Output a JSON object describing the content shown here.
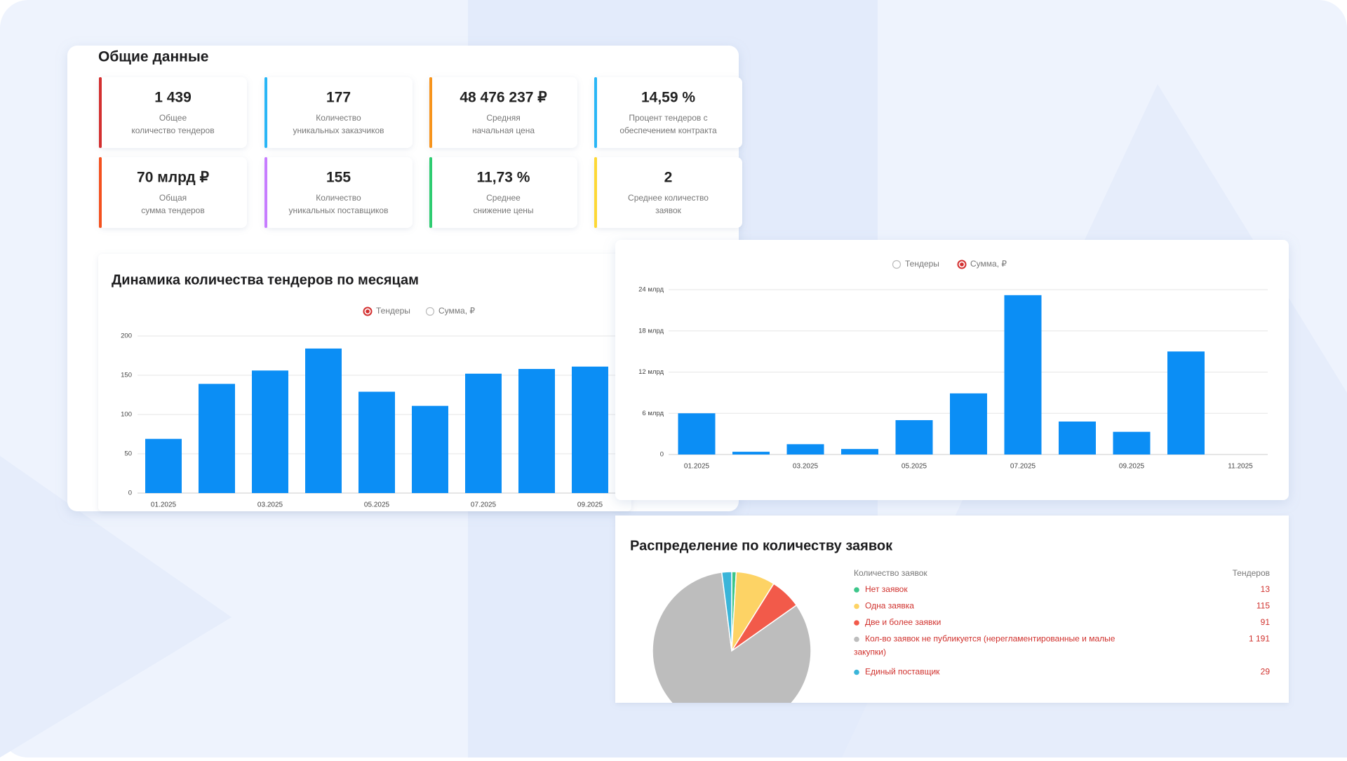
{
  "header": {
    "title": "Общие данные"
  },
  "cards": [
    {
      "value": "1 439",
      "label": [
        "Общее",
        "количество тендеров"
      ],
      "color": "#d32f2f"
    },
    {
      "value": "177",
      "label": [
        "Количество",
        "уникальных заказчиков"
      ],
      "color": "#29b6f6"
    },
    {
      "value": "48 476 237 ₽",
      "label": [
        "Средняя",
        "начальная цена"
      ],
      "color": "#f7941d"
    },
    {
      "value": "14,59 %",
      "label": [
        "Процент тендеров с",
        "обеспечением контракта"
      ],
      "color": "#29b6f6"
    },
    {
      "value": "70 млрд ₽",
      "label": [
        "Общая",
        "сумма тендеров"
      ],
      "color": "#f4511e"
    },
    {
      "value": "155",
      "label": [
        "Количество",
        "уникальных поставщиков"
      ],
      "color": "#c77dff"
    },
    {
      "value": "11,73 %",
      "label": [
        "Среднее",
        "снижение цены"
      ],
      "color": "#2ecc71"
    },
    {
      "value": "2",
      "label": [
        "Среднее количество",
        "заявок"
      ],
      "color": "#fdd835"
    }
  ],
  "chart_data": [
    {
      "type": "bar",
      "title": "Динамика количества тендеров по месяцам",
      "toggle": [
        "Тендеры",
        "Сумма, ₽"
      ],
      "selected": 0,
      "categories": [
        "01.2025",
        null,
        "03.2025",
        null,
        "05.2025",
        null,
        "07.2025",
        null,
        "09.2025"
      ],
      "values": [
        69,
        139,
        156,
        184,
        129,
        111,
        152,
        158,
        161
      ],
      "color": "#0b8ef5",
      "ylim": [
        0,
        200
      ],
      "yticks": [
        0,
        50,
        100,
        150,
        200
      ],
      "grid": true
    },
    {
      "type": "bar",
      "toggle": [
        "Тендеры",
        "Сумма, ₽"
      ],
      "selected": 1,
      "categories": [
        "01.2025",
        null,
        "03.2025",
        null,
        "05.2025",
        null,
        "07.2025",
        null,
        "09.2025",
        null,
        "11.2025"
      ],
      "values": [
        6.0,
        0.4,
        1.5,
        0.8,
        5.0,
        8.9,
        23.2,
        4.8,
        3.3,
        15.0,
        0
      ],
      "color": "#0b8ef5",
      "ylim": [
        0,
        24
      ],
      "yticks": [
        0,
        {
          "value": 6,
          "label": "6 млрд"
        },
        {
          "value": 12,
          "label": "12 млрд"
        },
        {
          "value": 18,
          "label": "18 млрд"
        },
        {
          "value": 24,
          "label": "24 млрд"
        }
      ],
      "grid": true
    },
    {
      "type": "pie",
      "title": "Распределение по количеству заявок",
      "category_header": "Количество заявок",
      "value_header": "Тендеров",
      "categories": [
        "Нет заявок",
        "Одна заявка",
        "Две и более заявки",
        "Кол-во заявок не публикуется (нерегламентированные и малые закупки)",
        "Единый поставщик"
      ],
      "values": [
        13,
        115,
        91,
        1191,
        29
      ],
      "value_labels": [
        "13",
        "115",
        "91",
        "1 191",
        "29"
      ],
      "colors": [
        "#3cc68a",
        "#fdd365",
        "#f25a4a",
        "#bdbdbd",
        "#3ab5d9"
      ]
    }
  ]
}
